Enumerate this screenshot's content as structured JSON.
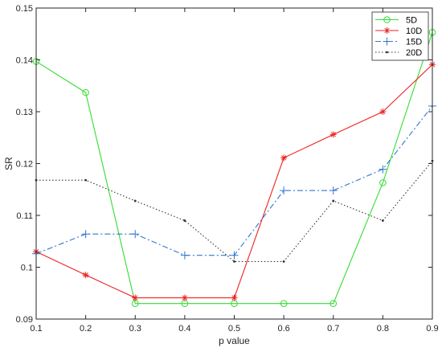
{
  "chart_data": {
    "type": "line",
    "title": "",
    "xlabel": "p value",
    "ylabel": "SR",
    "xlim": [
      0.1,
      0.9
    ],
    "ylim": [
      0.09,
      0.15
    ],
    "x": [
      0.1,
      0.2,
      0.3,
      0.4,
      0.5,
      0.6,
      0.7,
      0.8,
      0.9
    ],
    "x_ticks": [
      "0.1",
      "0.2",
      "0.3",
      "0.4",
      "0.5",
      "0.6",
      "0.7",
      "0.8",
      "0.9"
    ],
    "y_ticks": [
      "0.09",
      "0.1",
      "0.11",
      "0.12",
      "0.13",
      "0.14",
      "0.15"
    ],
    "y_tick_values": [
      0.09,
      0.1,
      0.11,
      0.12,
      0.13,
      0.14,
      0.15
    ],
    "grid": false,
    "legend_position": "top-right",
    "series": [
      {
        "name": "5D",
        "color": "#33dd33",
        "marker": "circle",
        "dash": "solid",
        "values": [
          0.1397,
          0.1337,
          0.093,
          0.093,
          0.093,
          0.093,
          0.093,
          0.1163,
          0.1453
        ]
      },
      {
        "name": "10D",
        "color": "#ee2222",
        "marker": "star",
        "dash": "solid",
        "values": [
          0.103,
          0.0985,
          0.0941,
          0.0941,
          0.0941,
          0.1211,
          0.1256,
          0.13,
          0.1391
        ]
      },
      {
        "name": "15D",
        "color": "#3377cc",
        "marker": "plus",
        "dash": "dashdot",
        "values": [
          0.1026,
          0.1064,
          0.1064,
          0.1023,
          0.1023,
          0.1148,
          0.1148,
          0.1189,
          0.1311
        ]
      },
      {
        "name": "20D",
        "color": "#333333",
        "marker": "dot",
        "dash": "dotted",
        "values": [
          0.1168,
          0.1168,
          0.1128,
          0.109,
          0.1011,
          0.1011,
          0.1128,
          0.109,
          0.1205
        ]
      }
    ]
  }
}
